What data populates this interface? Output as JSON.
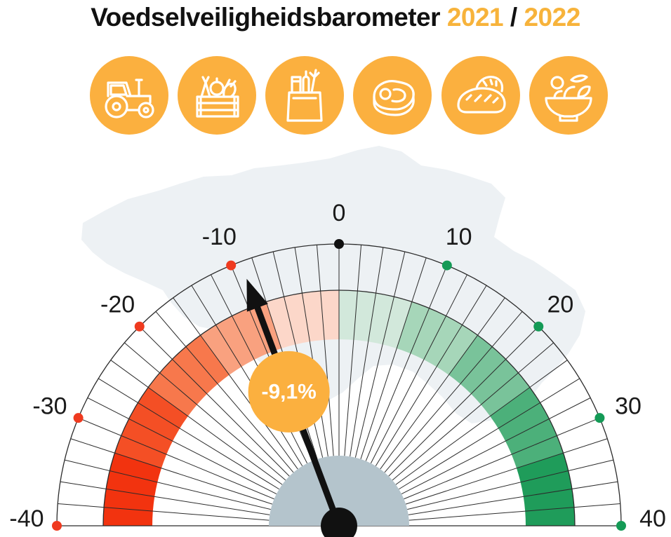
{
  "title": {
    "main": "Voedselveiligheidsbarometer",
    "year1": "2021",
    "separator": "/",
    "year2": "2022"
  },
  "icons": [
    "tractor-icon",
    "produce-crate-icon",
    "grocery-bag-icon",
    "steak-icon",
    "bread-icon",
    "salad-bowl-icon"
  ],
  "colors": {
    "accent": "#fbb03f",
    "negative_bands": [
      "#fcd7c9",
      "#f9a17f",
      "#f7784c",
      "#f44f25",
      "#f2330f"
    ],
    "positive_bands": [
      "#d2e8db",
      "#a6d6b9",
      "#79c39a",
      "#4cb07a",
      "#1f9c5a"
    ],
    "needle": "#111111",
    "hub": "#b4c4cc",
    "map": "#edf1f4"
  },
  "chart_data": {
    "type": "gauge",
    "range": [
      -40,
      40
    ],
    "major_ticks": [
      -40,
      -30,
      -20,
      -10,
      0,
      10,
      20,
      30,
      40
    ],
    "tick_labels": [
      "-40",
      "-30",
      "-20",
      "-10",
      "0",
      "10",
      "20",
      "30",
      "40"
    ],
    "minor_tick_step": 2,
    "value": -9.1,
    "value_label": "-9,1%",
    "bands": [
      {
        "from": -40,
        "to": -32,
        "color": "#f2330f"
      },
      {
        "from": -32,
        "to": -24,
        "color": "#f44f25"
      },
      {
        "from": -24,
        "to": -16,
        "color": "#f7784c"
      },
      {
        "from": -16,
        "to": -8,
        "color": "#f9a17f"
      },
      {
        "from": -8,
        "to": 0,
        "color": "#fcd7c9"
      },
      {
        "from": 0,
        "to": 8,
        "color": "#d2e8db"
      },
      {
        "from": 8,
        "to": 16,
        "color": "#a6d6b9"
      },
      {
        "from": 16,
        "to": 24,
        "color": "#79c39a"
      },
      {
        "from": 24,
        "to": 32,
        "color": "#4cb07a"
      },
      {
        "from": 32,
        "to": 40,
        "color": "#1f9c5a"
      }
    ]
  }
}
